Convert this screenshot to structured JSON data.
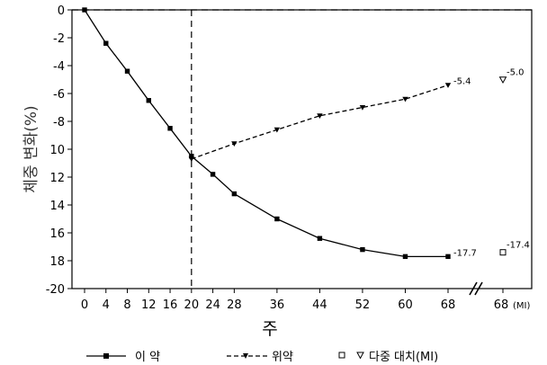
{
  "chart_data": {
    "type": "line",
    "xlabel": "주",
    "ylabel": "체중 변화(%)",
    "ylim": [
      -20,
      0
    ],
    "yticks": [
      0,
      -2,
      -4,
      -6,
      -8,
      -10,
      -12,
      -14,
      -16,
      -18,
      -20
    ],
    "ytick_labels": [
      "0",
      "-2",
      "-4",
      "-6",
      "-8",
      "10",
      "12",
      "14",
      "16",
      "18",
      "-20"
    ],
    "xticks": [
      0,
      4,
      8,
      12,
      16,
      20,
      24,
      28,
      36,
      44,
      52,
      60,
      68
    ],
    "xtick_labels": [
      "0",
      "4",
      "8",
      "12",
      "16",
      "20",
      "24",
      "28",
      "36",
      "44",
      "52",
      "60",
      "68"
    ],
    "extra_tick": {
      "label": "68",
      "sublabel": "(MI)"
    },
    "reference_lines": {
      "horizontal_y": 0,
      "vertical_x": 20
    },
    "grid": false,
    "legend_position": "bottom",
    "series": [
      {
        "name": "이 약",
        "marker": "filled-square",
        "style": "solid",
        "x": [
          0,
          4,
          8,
          12,
          16,
          20,
          24,
          28,
          36,
          44,
          52,
          60,
          68
        ],
        "y": [
          0,
          -2.4,
          -4.4,
          -6.5,
          -8.5,
          -10.5,
          -11.8,
          -13.2,
          -15.0,
          -16.4,
          -17.2,
          -17.7,
          -17.7
        ],
        "end_label": "-17.7",
        "mi_value": -17.4,
        "mi_label": "-17.4",
        "mi_marker": "open-square"
      },
      {
        "name": "위약",
        "marker": "filled-triangle-down",
        "style": "dashed",
        "x": [
          20,
          28,
          36,
          44,
          52,
          60,
          68
        ],
        "y": [
          -10.7,
          -9.6,
          -8.6,
          -7.6,
          -7.0,
          -6.4,
          -5.4
        ],
        "end_label": "-5.4",
        "mi_value": -5.0,
        "mi_label": "-5.0",
        "mi_marker": "open-triangle-down"
      }
    ],
    "legend": {
      "drug": "이 약",
      "placebo": "위약",
      "mi": "다중 대치(MI)"
    }
  }
}
